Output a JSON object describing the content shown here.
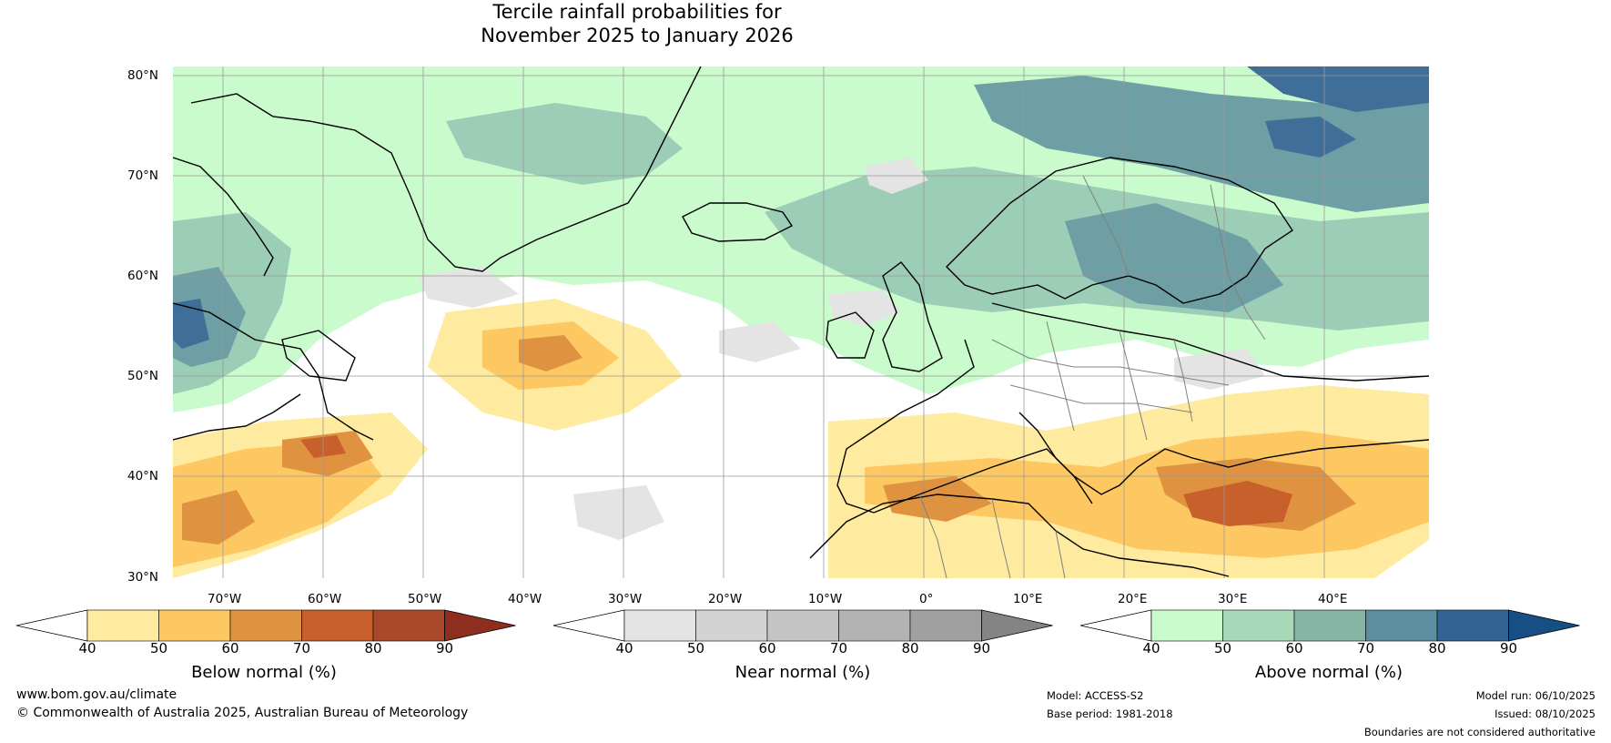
{
  "title": {
    "line1": "Tercile rainfall probabilities for",
    "line2": "November 2025 to January 2026"
  },
  "axes": {
    "lat_labels": [
      "80°N",
      "70°N",
      "60°N",
      "50°N",
      "40°N",
      "30°N"
    ],
    "lon_labels": [
      "70°W",
      "60°W",
      "50°W",
      "40°W",
      "30°W",
      "20°W",
      "10°W",
      "0°",
      "10°E",
      "20°E",
      "30°E",
      "40°E"
    ]
  },
  "colorbars": [
    {
      "title": "Below normal (%)",
      "ticks": [
        "40",
        "50",
        "60",
        "70",
        "80",
        "90"
      ],
      "colors": [
        "#ffffff",
        "#feeba0",
        "#fdc862",
        "#df9340",
        "#c8602c",
        "#a9482a",
        "#8e2e1e"
      ]
    },
    {
      "title": "Near normal (%)",
      "ticks": [
        "40",
        "50",
        "60",
        "70",
        "80",
        "90"
      ],
      "colors": [
        "#ffffff",
        "#e4e4e4",
        "#d3d3d3",
        "#c4c4c4",
        "#b3b3b3",
        "#a0a0a0",
        "#848484"
      ]
    },
    {
      "title": "Above normal (%)",
      "ticks": [
        "40",
        "50",
        "60",
        "70",
        "80",
        "90"
      ],
      "colors": [
        "#ffffff",
        "#c9fbcc",
        "#a7d9b8",
        "#86b4a5",
        "#5b8fa0",
        "#336392",
        "#174f85"
      ]
    }
  ],
  "map_colors": {
    "water": "#ffffff",
    "above_light": "#c9fbcc",
    "above_mid": "#9ccdb6",
    "above_dark": "#6e9fa5",
    "above_deep": "#3f6f98",
    "below_light": "#feeba0",
    "below_mid": "#fdc862",
    "below_dark": "#df9340",
    "below_deep": "#c8602c",
    "near_light": "#e4e4e4",
    "grid": "#999999",
    "coast": "#000000",
    "border": "#808080"
  },
  "footer": {
    "url": "www.bom.gov.au/climate",
    "copyright": "© Commonwealth of Australia 2025, Australian Bureau of Meteorology",
    "model": "Model: ACCESS-S2",
    "base_period": "Base period: 1981-2018",
    "model_run": "Model run: 06/10/2025",
    "issued": "Issued: 08/10/2025",
    "disclaimer": "Boundaries are not considered authoritative"
  }
}
